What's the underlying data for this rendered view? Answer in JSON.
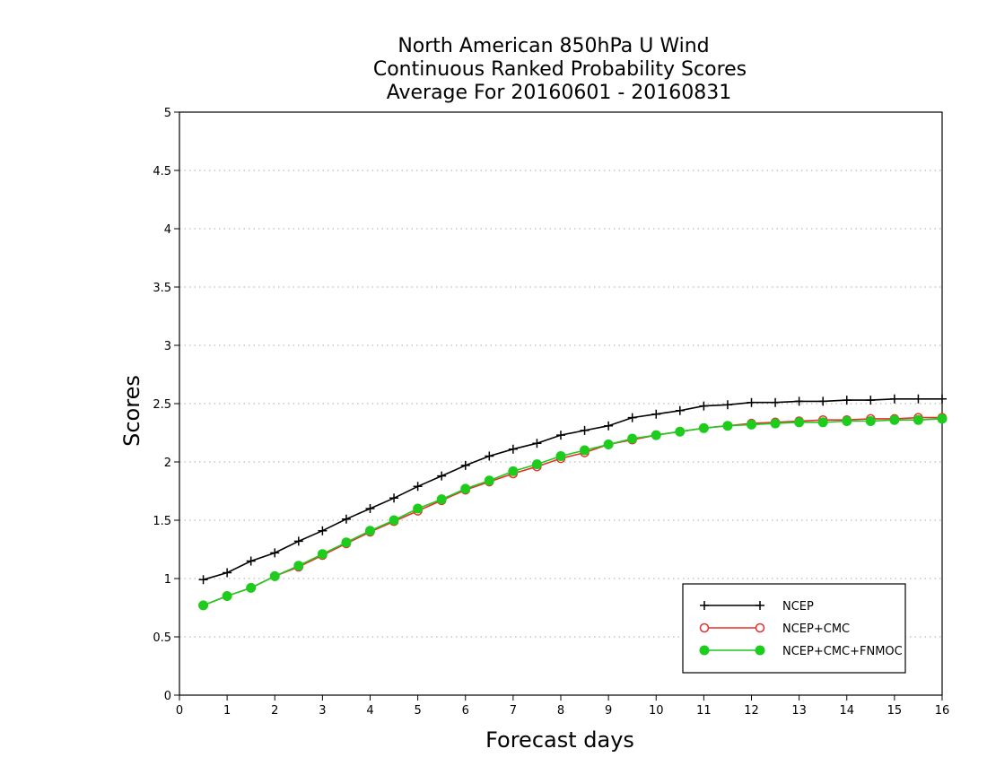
{
  "chart_data": {
    "type": "line",
    "title_lines": [
      "North American 850hPa U Wind",
      "Continuous Ranked Probability Scores",
      "Average For 20160601 - 20160831"
    ],
    "xlabel": "Forecast days",
    "ylabel": "Scores",
    "xlim": [
      0,
      16
    ],
    "ylim": [
      0,
      5
    ],
    "x_ticks": [
      "0",
      "1",
      "2",
      "3",
      "4",
      "5",
      "6",
      "7",
      "8",
      "9",
      "10",
      "11",
      "12",
      "13",
      "14",
      "15",
      "16"
    ],
    "y_ticks": [
      "0",
      "0.5",
      "1",
      "1.5",
      "2",
      "2.5",
      "3",
      "3.5",
      "4",
      "4.5",
      "5"
    ],
    "grid": "horizontal-dotted",
    "legend_position": "bottom-right",
    "x": [
      0.5,
      1,
      1.5,
      2,
      2.5,
      3,
      3.5,
      4,
      4.5,
      5,
      5.5,
      6,
      6.5,
      7,
      7.5,
      8,
      8.5,
      9,
      9.5,
      10,
      10.5,
      11,
      11.5,
      12,
      12.5,
      13,
      13.5,
      14,
      14.5,
      15,
      15.5,
      16
    ],
    "series": [
      {
        "name": "NCEP",
        "color": "#000000",
        "marker": "plus",
        "values": [
          0.99,
          1.05,
          1.15,
          1.22,
          1.32,
          1.41,
          1.51,
          1.6,
          1.69,
          1.79,
          1.88,
          1.97,
          2.05,
          2.11,
          2.16,
          2.23,
          2.27,
          2.31,
          2.38,
          2.41,
          2.44,
          2.48,
          2.49,
          2.51,
          2.51,
          2.52,
          2.52,
          2.53,
          2.53,
          2.54,
          2.54,
          2.54
        ]
      },
      {
        "name": "NCEP+CMC",
        "color": "#e8302a",
        "marker": "open-circle",
        "values": [
          0.77,
          0.85,
          0.92,
          1.02,
          1.1,
          1.2,
          1.3,
          1.4,
          1.49,
          1.58,
          1.67,
          1.76,
          1.83,
          1.9,
          1.96,
          2.03,
          2.08,
          2.15,
          2.19,
          2.23,
          2.26,
          2.29,
          2.31,
          2.33,
          2.34,
          2.35,
          2.36,
          2.36,
          2.37,
          2.37,
          2.38,
          2.38
        ]
      },
      {
        "name": "NCEP+CMC+FNMOC",
        "color": "#1ecc1e",
        "marker": "filled-circle",
        "values": [
          0.77,
          0.85,
          0.92,
          1.02,
          1.11,
          1.21,
          1.31,
          1.41,
          1.5,
          1.6,
          1.68,
          1.77,
          1.84,
          1.92,
          1.98,
          2.05,
          2.1,
          2.15,
          2.2,
          2.23,
          2.26,
          2.29,
          2.31,
          2.32,
          2.33,
          2.34,
          2.34,
          2.35,
          2.35,
          2.36,
          2.36,
          2.37
        ]
      }
    ]
  }
}
